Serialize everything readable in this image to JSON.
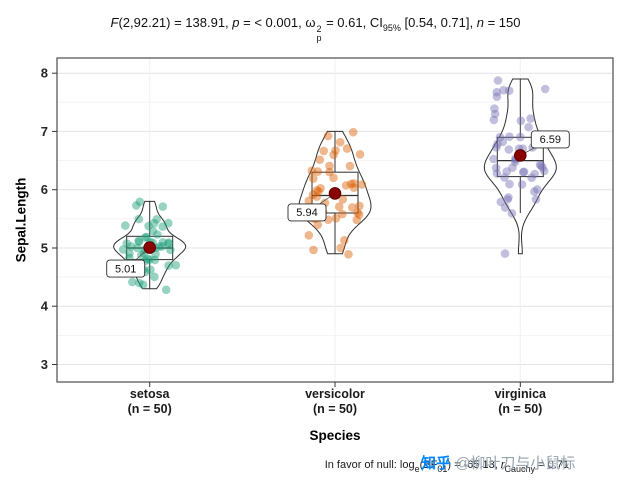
{
  "title": {
    "parts": [
      {
        "t": "F"
      },
      {
        "t": "(2,92.21) = 138.91, "
      },
      {
        "t": "p"
      },
      {
        "t": " = < 0.001, "
      },
      {
        "t": "ω"
      },
      {
        "t": "2"
      },
      {
        "t": "p"
      },
      {
        "t": " = 0.61, CI"
      },
      {
        "t": "95%"
      },
      {
        "t": " [0.54, 0.71], "
      },
      {
        "t": "n"
      },
      {
        "t": " = 150"
      }
    ]
  },
  "y_axis": {
    "label": "Sepal.Length",
    "ticks": [
      3,
      4,
      5,
      6,
      7,
      8
    ]
  },
  "x_axis": {
    "label": "Species"
  },
  "caption": {
    "parts": [
      {
        "t": "In favor of null: log"
      },
      {
        "t": "e"
      },
      {
        "t": "(BF"
      },
      {
        "t": "01"
      },
      {
        "t": ") = -65.13, "
      },
      {
        "t": "r"
      },
      {
        "t": "Cauchy"
      },
      {
        "t": " = 0.71"
      }
    ]
  },
  "watermark": {
    "brand": "知乎",
    "handle": "@柳叶刀与小鼠标"
  },
  "chart_data": {
    "type": "violin",
    "xlabel": "Species",
    "ylabel": "Sepal.Length",
    "ylim": [
      3,
      8
    ],
    "n_total": 150,
    "mean_color": "#8b0000",
    "groups": [
      {
        "name": "setosa",
        "tick_line1": "setosa",
        "tick_line2": "(n = 50)",
        "n": 50,
        "color": "#1b9e77",
        "mean": 5.006,
        "mean_label": "5.01",
        "values": [
          5.1,
          4.9,
          4.7,
          4.6,
          5.0,
          5.4,
          4.6,
          5.0,
          4.4,
          4.9,
          5.4,
          4.8,
          4.8,
          4.3,
          5.8,
          5.7,
          5.4,
          5.1,
          5.7,
          5.1,
          5.4,
          5.1,
          4.6,
          5.1,
          4.8,
          5.0,
          5.0,
          5.2,
          5.2,
          4.7,
          4.8,
          5.4,
          5.2,
          5.5,
          4.9,
          5.0,
          5.5,
          4.9,
          4.4,
          5.1,
          5.0,
          4.5,
          4.4,
          5.0,
          5.1,
          4.8,
          5.1,
          4.6,
          5.3,
          5.0
        ]
      },
      {
        "name": "versicolor",
        "tick_line1": "versicolor",
        "tick_line2": "(n = 50)",
        "n": 50,
        "color": "#d95f02",
        "mean": 5.936,
        "mean_label": "5.94",
        "values": [
          7.0,
          6.4,
          6.9,
          5.5,
          6.5,
          5.7,
          6.3,
          4.9,
          6.6,
          5.2,
          5.0,
          5.9,
          6.0,
          6.1,
          5.6,
          6.7,
          5.6,
          5.8,
          6.2,
          5.6,
          5.9,
          6.1,
          6.3,
          6.1,
          6.4,
          6.6,
          6.8,
          6.7,
          6.0,
          5.7,
          5.5,
          5.5,
          5.8,
          6.0,
          5.4,
          6.0,
          6.7,
          6.3,
          5.6,
          5.5,
          5.5,
          6.1,
          5.8,
          5.0,
          5.6,
          5.7,
          5.7,
          6.2,
          5.1,
          5.7
        ]
      },
      {
        "name": "virginica",
        "tick_line1": "virginica",
        "tick_line2": "(n = 50)",
        "n": 50,
        "color": "#7570b3",
        "mean": 6.588,
        "mean_label": "6.59",
        "values": [
          6.3,
          5.8,
          7.1,
          6.3,
          6.5,
          7.6,
          4.9,
          7.3,
          6.7,
          7.2,
          6.5,
          6.4,
          6.8,
          5.7,
          5.8,
          6.4,
          6.5,
          7.7,
          7.7,
          6.0,
          6.9,
          5.6,
          7.7,
          6.3,
          6.7,
          7.2,
          6.2,
          6.1,
          6.4,
          7.2,
          7.4,
          7.9,
          6.4,
          6.3,
          6.1,
          7.7,
          6.3,
          6.4,
          6.0,
          6.9,
          6.7,
          6.9,
          5.8,
          6.8,
          6.7,
          6.7,
          6.3,
          6.5,
          6.2,
          5.9
        ]
      }
    ]
  }
}
